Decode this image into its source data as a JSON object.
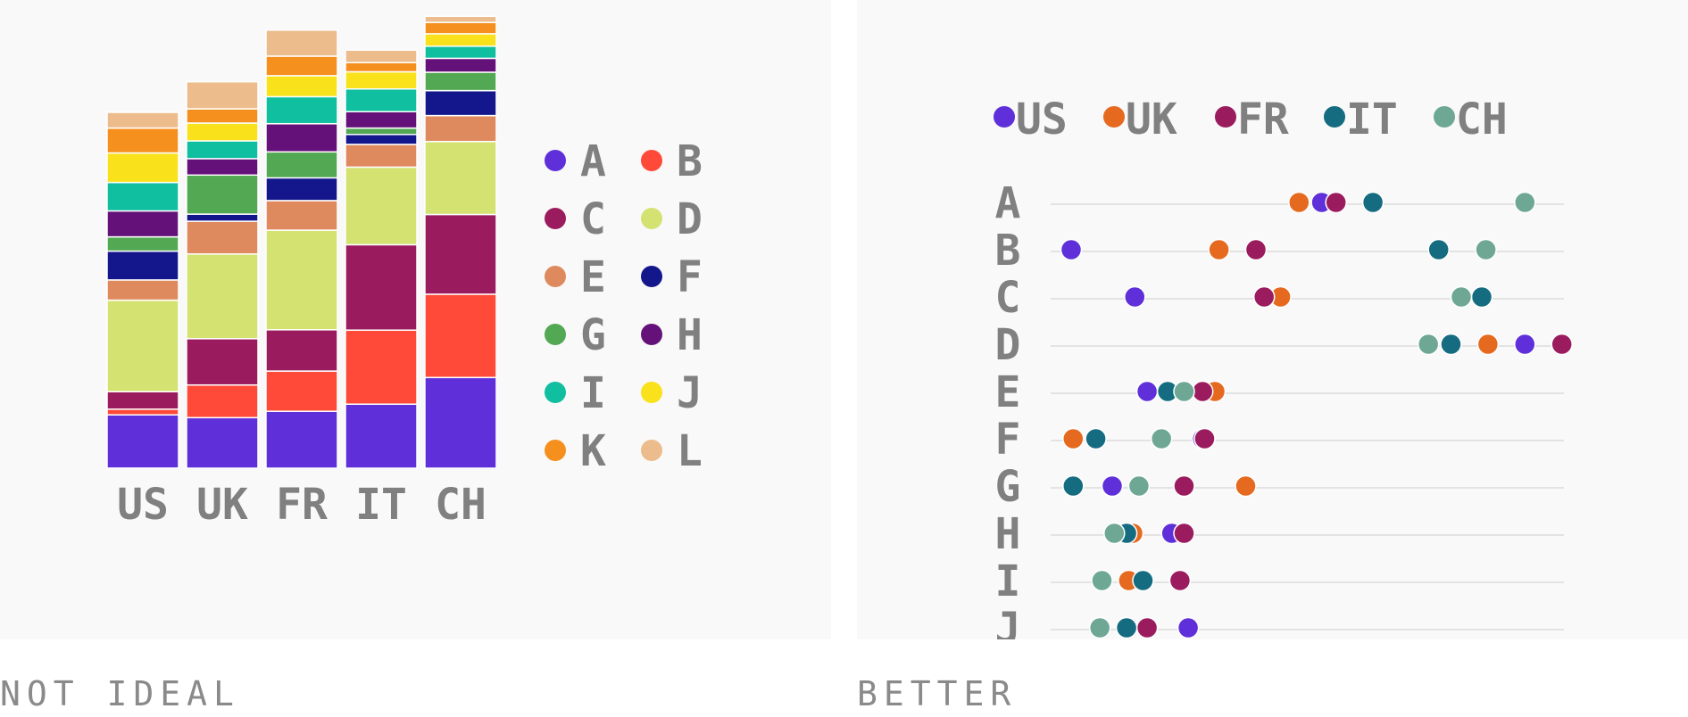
{
  "captions": {
    "left": "NOT IDEAL",
    "right": "BETTER"
  },
  "chart_data": [
    {
      "type": "bar",
      "stacked": true,
      "categories": [
        "US",
        "UK",
        "FR",
        "IT",
        "CH"
      ],
      "legend_placement": "right",
      "series": [
        {
          "name": "A",
          "color": "#5f30d9",
          "values": [
            0.15,
            0.142,
            0.16,
            0.18,
            0.255
          ]
        },
        {
          "name": "B",
          "color": "#ff4a3a",
          "values": [
            0.016,
            0.092,
            0.113,
            0.208,
            0.234
          ]
        },
        {
          "name": "C",
          "color": "#9b1c5e",
          "values": [
            0.049,
            0.13,
            0.116,
            0.24,
            0.224
          ]
        },
        {
          "name": "D",
          "color": "#d4e272",
          "values": [
            0.257,
            0.238,
            0.28,
            0.218,
            0.205
          ]
        },
        {
          "name": "E",
          "color": "#df8a5e",
          "values": [
            0.057,
            0.092,
            0.083,
            0.064,
            0.073
          ]
        },
        {
          "name": "F",
          "color": "#14178c",
          "values": [
            0.081,
            0.02,
            0.064,
            0.028,
            0.07
          ]
        },
        {
          "name": "G",
          "color": "#52a853",
          "values": [
            0.04,
            0.11,
            0.073,
            0.018,
            0.052
          ]
        },
        {
          "name": "H",
          "color": "#64127a",
          "values": [
            0.073,
            0.046,
            0.079,
            0.046,
            0.039
          ]
        },
        {
          "name": "I",
          "color": "#10bea0",
          "values": [
            0.08,
            0.05,
            0.076,
            0.064,
            0.034
          ]
        },
        {
          "name": "J",
          "color": "#f9e11b",
          "values": [
            0.083,
            0.05,
            0.059,
            0.048,
            0.035
          ]
        },
        {
          "name": "K",
          "color": "#f5901f",
          "values": [
            0.07,
            0.04,
            0.055,
            0.026,
            0.032
          ]
        },
        {
          "name": "L",
          "color": "#ecbc8c",
          "values": [
            0.044,
            0.076,
            0.073,
            0.035,
            0.017
          ]
        }
      ]
    },
    {
      "type": "scatter",
      "subtype": "dot-plot",
      "categories": [
        "A",
        "B",
        "C",
        "D",
        "E",
        "F",
        "G",
        "H",
        "I",
        "J"
      ],
      "legend_placement": "top",
      "xlim": [
        0,
        0.26
      ],
      "grid": true,
      "series": [
        {
          "name": "US",
          "color": "#5f30d9",
          "values": [
            0.132,
            0.01,
            0.041,
            0.231,
            0.047,
            0.074,
            0.03,
            0.059,
            0.063,
            0.067
          ]
        },
        {
          "name": "UK",
          "color": "#e56a1f",
          "values": [
            0.121,
            0.082,
            0.112,
            0.213,
            0.08,
            0.011,
            0.095,
            0.04,
            0.038,
            0.047
          ]
        },
        {
          "name": "FR",
          "color": "#9b1c5e",
          "values": [
            0.139,
            0.1,
            0.104,
            0.249,
            0.074,
            0.075,
            0.065,
            0.065,
            0.063,
            0.047
          ]
        },
        {
          "name": "IT",
          "color": "#156c80",
          "values": [
            0.157,
            0.189,
            0.21,
            0.195,
            0.057,
            0.022,
            0.011,
            0.037,
            0.045,
            0.037
          ]
        },
        {
          "name": "CH",
          "color": "#6ea895",
          "values": [
            0.231,
            0.212,
            0.2,
            0.184,
            0.065,
            0.054,
            0.043,
            0.031,
            0.025,
            0.024
          ]
        }
      ]
    }
  ]
}
